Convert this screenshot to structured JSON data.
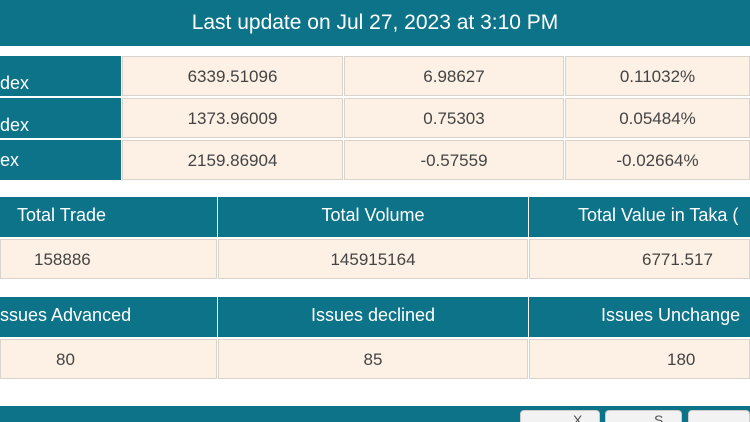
{
  "banner": {
    "title": "Last update on Jul 27, 2023 at 3:10 PM"
  },
  "indices": [
    {
      "name": "dex",
      "value": "6339.51096",
      "change": "6.98627",
      "percent": "0.11032%"
    },
    {
      "name": "dex",
      "value": "1373.96009",
      "change": "0.75303",
      "percent": "0.05484%"
    },
    {
      "name": "ex",
      "value": "2159.86904",
      "change": "-0.57559",
      "percent": "-0.02664%"
    }
  ],
  "trade_summary": {
    "headers": [
      "Total Trade",
      "Total Volume",
      "Total Value in Taka ("
    ],
    "values": [
      "158886",
      "145915164",
      "6771.517"
    ]
  },
  "issues_summary": {
    "headers": [
      "ssues Advanced",
      "Issues declined",
      "Issues Unchange"
    ],
    "values": [
      "80",
      "85",
      "180"
    ]
  },
  "bottom_buttons": {
    "b1": "X",
    "b2": "S"
  }
}
